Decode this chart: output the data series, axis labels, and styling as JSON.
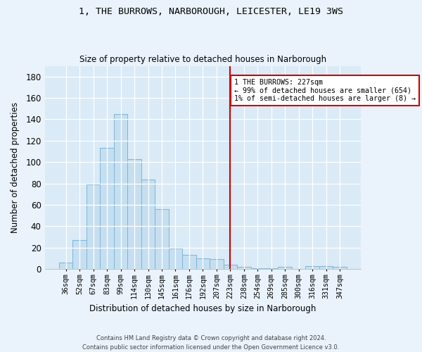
{
  "title": "1, THE BURROWS, NARBOROUGH, LEICESTER, LE19 3WS",
  "subtitle": "Size of property relative to detached houses in Narborough",
  "xlabel": "Distribution of detached houses by size in Narborough",
  "ylabel": "Number of detached properties",
  "bar_color": "#c5dff0",
  "bar_edge_color": "#7db4d8",
  "background_color": "#daeaf6",
  "fig_background_color": "#eaf3fb",
  "categories": [
    "36sqm",
    "52sqm",
    "67sqm",
    "83sqm",
    "99sqm",
    "114sqm",
    "130sqm",
    "145sqm",
    "161sqm",
    "176sqm",
    "192sqm",
    "207sqm",
    "223sqm",
    "238sqm",
    "254sqm",
    "269sqm",
    "285sqm",
    "300sqm",
    "316sqm",
    "331sqm",
    "347sqm"
  ],
  "values": [
    6,
    27,
    79,
    113,
    145,
    103,
    84,
    56,
    19,
    13,
    10,
    9,
    4,
    2,
    1,
    1,
    2,
    0,
    3,
    3,
    2
  ],
  "ylim": [
    0,
    190
  ],
  "yticks": [
    0,
    20,
    40,
    60,
    80,
    100,
    120,
    140,
    160,
    180
  ],
  "vline_x_idx": 12,
  "vline_color": "#cc0000",
  "annotation_line1": "1 THE BURROWS: 227sqm",
  "annotation_line2": "← 99% of detached houses are smaller (654)",
  "annotation_line3": "1% of semi-detached houses are larger (8) →",
  "annotation_box_color": "#ffffff",
  "annotation_box_edge_color": "#cc0000",
  "footer_line1": "Contains HM Land Registry data © Crown copyright and database right 2024.",
  "footer_line2": "Contains public sector information licensed under the Open Government Licence v3.0."
}
